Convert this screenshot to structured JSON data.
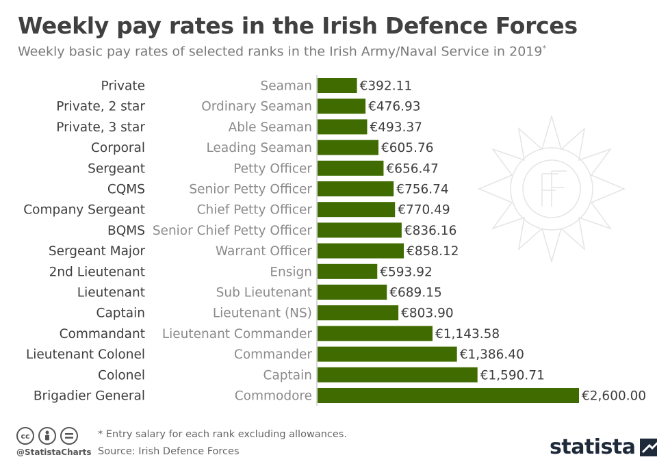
{
  "header": {
    "title": "Weekly pay rates in the Irish Defence Forces",
    "subtitle": "Weekly basic pay rates of selected ranks in the Irish Army/Naval Service in 2019",
    "subtitle_mark": "*"
  },
  "chart_data": {
    "type": "bar",
    "orientation": "horizontal",
    "title": "Weekly pay rates in the Irish Defence Forces",
    "currency": "€",
    "categories": [
      "Private",
      "Private, 2 star",
      "Private, 3 star",
      "Corporal",
      "Sergeant",
      "CQMS",
      "Company Sergeant",
      "BQMS",
      "Sergeant Major",
      "2nd Lieutenant",
      "Lieutenant",
      "Captain",
      "Commandant",
      "Lieutenant Colonel",
      "Colonel",
      "Brigadier General"
    ],
    "naval_equivalents": [
      "Seaman",
      "Ordinary Seaman",
      "Able Seaman",
      "Leading Seaman",
      "Petty Officer",
      "Senior Petty Officer",
      "Chief Petty Officer",
      "Senior Chief Petty Officer",
      "Warrant Officer",
      "Ensign",
      "Sub Lieutenant",
      "Lieutenant (NS)",
      "Lieutenant Commander",
      "Commander",
      "Captain",
      "Commodore"
    ],
    "values": [
      392.11,
      476.93,
      493.37,
      605.76,
      656.47,
      756.74,
      770.49,
      836.16,
      858.12,
      593.92,
      689.15,
      803.9,
      1143.58,
      1386.4,
      1590.71,
      2600.0
    ],
    "value_labels": [
      "€392.11",
      "€476.93",
      "€493.37",
      "€605.76",
      "€656.47",
      "€756.74",
      "€770.49",
      "€836.16",
      "€858.12",
      "€593.92",
      "€689.15",
      "€803.90",
      "€1,143.58",
      "€1,386.40",
      "€1,590.71",
      "€2,600.00"
    ],
    "xlim": [
      0,
      2600
    ],
    "grid": false,
    "legend": "none",
    "bar_color": "#3f6b00"
  },
  "footer": {
    "note": "* Entry salary for each rank excluding allowances.",
    "source": "Source: Irish Defence Forces",
    "handle": "@StatistaCharts",
    "brand": "statista"
  }
}
